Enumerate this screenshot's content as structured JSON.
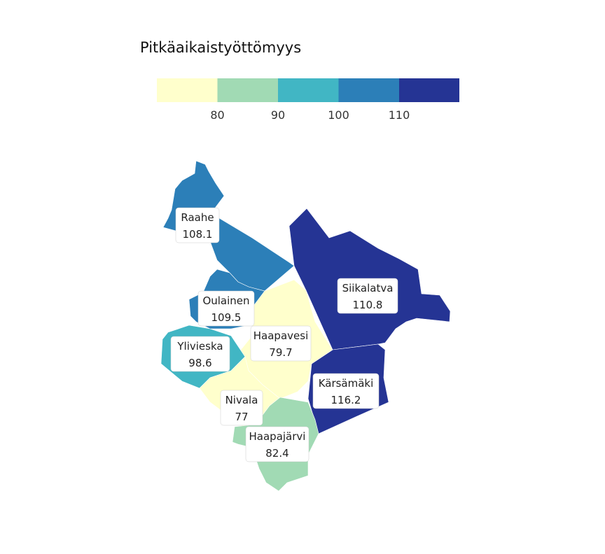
{
  "legend": {
    "title": "Pitkäaikaistyöttömyys",
    "colors": [
      "#ffffcc",
      "#a1dab4",
      "#41b6c4",
      "#2c7fb8",
      "#253494"
    ],
    "ticks": [
      "80",
      "90",
      "100",
      "110"
    ]
  },
  "regions": [
    {
      "id": "raahe",
      "name": "Raahe",
      "value": "108.1",
      "color": "#2c7fb8"
    },
    {
      "id": "oulainen",
      "name": "Oulainen",
      "value": "109.5",
      "color": "#2c7fb8"
    },
    {
      "id": "ylivieska",
      "name": "Ylivieska",
      "value": "98.6",
      "color": "#41b6c4"
    },
    {
      "id": "haapavesi",
      "name": "Haapavesi",
      "value": "79.7",
      "color": "#ffffcc"
    },
    {
      "id": "nivala",
      "name": "Nivala",
      "value": "77",
      "color": "#ffffcc"
    },
    {
      "id": "haapajarvi",
      "name": "Haapajärvi",
      "value": "82.4",
      "color": "#a1dab4"
    },
    {
      "id": "siikalatva",
      "name": "Siikalatva",
      "value": "110.8",
      "color": "#253494"
    },
    {
      "id": "karsamaki",
      "name": "Kärsämäki",
      "value": "116.2",
      "color": "#253494"
    }
  ]
}
